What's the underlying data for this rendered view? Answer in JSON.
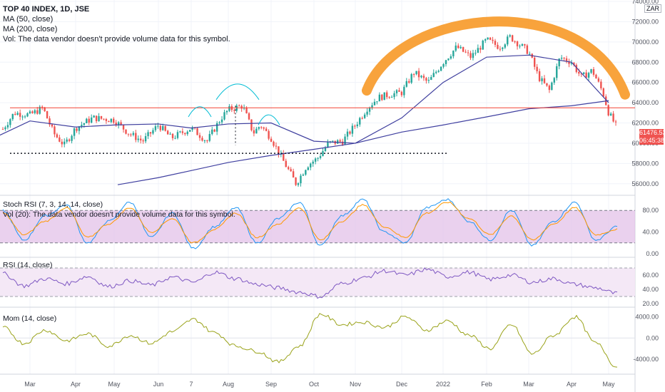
{
  "legend": {
    "title": "TOP 40 INDEX, 1D, JSE",
    "ma50": "MA (50, close)",
    "ma200": "MA (200, close)",
    "vol": "Vol: The data vendor doesn't provide volume data for this symbol."
  },
  "currency_badge": "ZAR",
  "price_tag": {
    "value": "61476.53",
    "countdown": "06:45:38",
    "color": "#ef5350"
  },
  "panes": {
    "stoch_label": "Stoch RSI (7, 3, 14, 14, close)",
    "vol20_label": "Vol (20): The data vendor doesn't provide volume data for this symbol.",
    "rsi_label": "RSI (14, close)",
    "mom_label": "Mom (14, close)"
  },
  "colors": {
    "up": "#26a69a",
    "down": "#ef5350",
    "ma50": "#3f3f9e",
    "ma200": "#4040a0",
    "resistance": "#f44336",
    "arc": "#f7931a",
    "stoch_band": "#e1bee7",
    "momentum": "#9aa31a"
  },
  "chart_data": [
    {
      "type": "candlestick",
      "title": "TOP 40 INDEX, 1D, JSE",
      "x": [
        "Mar",
        "Apr",
        "May",
        "Jun",
        "7",
        "Aug",
        "Sep",
        "Oct",
        "Nov",
        "Dec",
        "2022",
        "Feb",
        "Mar",
        "Apr",
        "May"
      ],
      "ylim": [
        55000,
        74000
      ],
      "yticks": [
        "56000.00",
        "58000.00",
        "60000.00",
        "62000.00",
        "64000.00",
        "66000.00",
        "68000.00",
        "70000.00",
        "72000.00",
        "74000.00"
      ],
      "close_path": [
        {
          "x": "Mar",
          "close": 63000
        },
        {
          "x": "Apr",
          "close": 61000
        },
        {
          "x": "May",
          "close": 62300
        },
        {
          "x": "Jun",
          "close": 61500
        },
        {
          "x": "7",
          "close": 60800
        },
        {
          "x": "Aug",
          "close": 63000
        },
        {
          "x": "Sep",
          "close": 60500
        },
        {
          "x": "Oct",
          "close": 57500
        },
        {
          "x": "Nov",
          "close": 61500
        },
        {
          "x": "Dec",
          "close": 65000
        },
        {
          "x": "2022",
          "close": 68000
        },
        {
          "x": "Feb",
          "close": 70000
        },
        {
          "x": "Mar",
          "close": 68500
        },
        {
          "x": "Apr",
          "close": 68500
        },
        {
          "x": "May",
          "close": 61476.53
        }
      ],
      "series": [
        {
          "name": "MA (50, close)",
          "values": [
            62200,
            61600,
            61800,
            61900,
            61500,
            61900,
            62000,
            60200,
            60000,
            62500,
            66000,
            68500,
            68700,
            68000,
            64000
          ]
        },
        {
          "name": "MA (200, close)",
          "values": [
            null,
            null,
            55900,
            56600,
            57300,
            58100,
            58800,
            59400,
            60000,
            61100,
            61800,
            62600,
            63400,
            63700,
            64200
          ]
        }
      ],
      "annotations": [
        "horizontal resistance line at 63500",
        "dotted support line at 59000",
        "head-and-shoulders arcs",
        "rounded top arc"
      ]
    },
    {
      "type": "line",
      "title": "Stoch RSI (7, 3, 14, 14, close)",
      "ylim": [
        0,
        100
      ],
      "yticks": [
        "0.00",
        "40.00",
        "80.00"
      ],
      "band": [
        20,
        80
      ],
      "series": [
        {
          "name": "K",
          "values": [
            80,
            25,
            70,
            90,
            20,
            60,
            95,
            30,
            75,
            10,
            50,
            85,
            20,
            65,
            95,
            15,
            70,
            100,
            40,
            20,
            85,
            100,
            60,
            25,
            80,
            15,
            60,
            95,
            25,
            50
          ]
        },
        {
          "name": "D",
          "values": [
            75,
            35,
            60,
            85,
            30,
            55,
            85,
            40,
            65,
            20,
            45,
            75,
            30,
            55,
            85,
            25,
            60,
            90,
            50,
            30,
            75,
            95,
            65,
            35,
            70,
            25,
            55,
            85,
            35,
            45
          ]
        }
      ]
    },
    {
      "type": "line",
      "title": "RSI (14, close)",
      "ylim": [
        20,
        80
      ],
      "yticks": [
        "20.00",
        "40.00",
        "60.00"
      ],
      "band": [
        30,
        70
      ],
      "series": [
        {
          "name": "RSI",
          "values": [
            62,
            45,
            55,
            48,
            58,
            44,
            52,
            46,
            57,
            50,
            64,
            55,
            47,
            42,
            36,
            30,
            48,
            56,
            66,
            60,
            68,
            58,
            64,
            54,
            60,
            50,
            55,
            47,
            42,
            34
          ]
        }
      ]
    },
    {
      "type": "line",
      "title": "Mom (14, close)",
      "ylim": [
        -6000,
        5000
      ],
      "yticks": [
        "-4000.00",
        "0.00",
        "4000.00"
      ],
      "series": [
        {
          "name": "Mom",
          "values": [
            2000,
            -1000,
            1500,
            -500,
            800,
            -1500,
            500,
            -1000,
            1200,
            3500,
            1000,
            -1500,
            -2500,
            -4500,
            -1500,
            4500,
            2500,
            3000,
            2000,
            4000,
            1500,
            3200,
            500,
            -2000,
            2500,
            -3000,
            500,
            4000,
            -1000,
            -5500
          ]
        }
      ]
    }
  ]
}
